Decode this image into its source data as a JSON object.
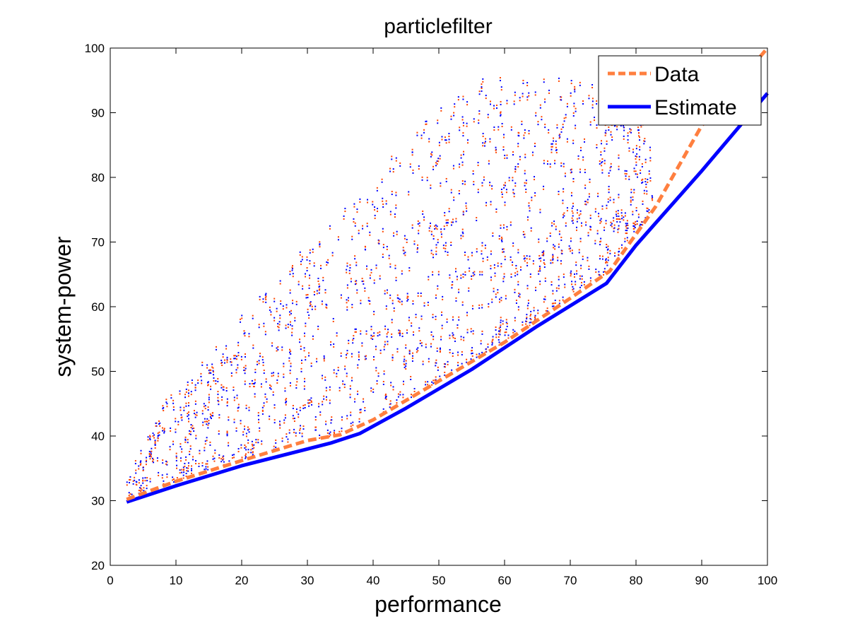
{
  "chart_data": {
    "type": "line",
    "title": "particlefilter",
    "xlabel": "performance",
    "ylabel": "system-power",
    "xlim": [
      0,
      100
    ],
    "ylim": [
      20,
      100
    ],
    "xticks": [
      "0",
      "10",
      "20",
      "30",
      "40",
      "50",
      "60",
      "70",
      "80",
      "90",
      "100"
    ],
    "yticks": [
      "20",
      "30",
      "40",
      "50",
      "60",
      "70",
      "80",
      "90",
      "100"
    ],
    "grid": false,
    "legend_position": "top-right",
    "colors": {
      "data": "#ff7f3f",
      "estimate": "#0000ff",
      "axes": "#000000"
    },
    "series": [
      {
        "name": "Data",
        "style": "dashed",
        "x": [
          2.5,
          10,
          20,
          30,
          35,
          40,
          50,
          60,
          70,
          76,
          83,
          90,
          95,
          100
        ],
        "y": [
          30.2,
          33,
          36.2,
          39.3,
          40.2,
          42.5,
          48.5,
          54.5,
          61.3,
          65.5,
          75.5,
          88,
          94,
          100
        ]
      },
      {
        "name": "Estimate",
        "style": "solid",
        "x": [
          2.5,
          10,
          20,
          33.5,
          38,
          45,
          55,
          65,
          75.5,
          80,
          90,
          100
        ],
        "y": [
          29.8,
          32.3,
          35.4,
          38.9,
          40.4,
          44.3,
          50.3,
          57,
          63.6,
          69.5,
          81,
          93
        ]
      }
    ],
    "scatter_note_colors": [
      "#0000ff",
      "#ff4500"
    ]
  }
}
